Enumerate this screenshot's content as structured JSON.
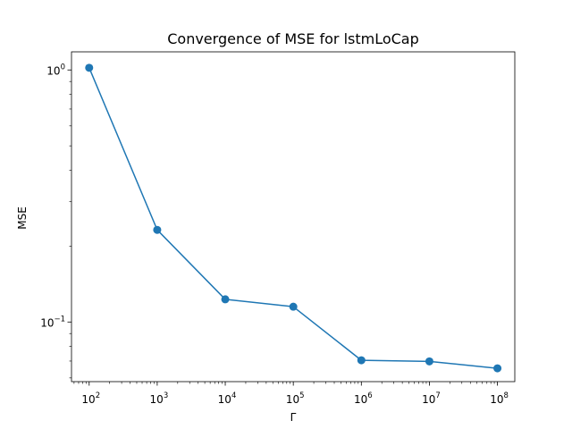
{
  "chart_data": {
    "type": "line",
    "title": "Convergence of MSE for lstmLoCap",
    "xlabel": "Γ",
    "ylabel": "MSE",
    "xscale": "log",
    "yscale": "log",
    "xlim": [
      55,
      180000000
    ],
    "ylim": [
      0.058,
      1.18
    ],
    "x": [
      100,
      1000,
      10000,
      100000,
      1000000,
      10000000,
      100000000
    ],
    "series": [
      {
        "values": [
          1.02,
          0.232,
          0.123,
          0.115,
          0.0705,
          0.0698,
          0.0655
        ],
        "color": "#1f77b4",
        "marker": "circle"
      }
    ],
    "x_ticks": [
      {
        "base": "10",
        "exp": "2",
        "value": 100
      },
      {
        "base": "10",
        "exp": "3",
        "value": 1000
      },
      {
        "base": "10",
        "exp": "4",
        "value": 10000
      },
      {
        "base": "10",
        "exp": "5",
        "value": 100000
      },
      {
        "base": "10",
        "exp": "6",
        "value": 1000000
      },
      {
        "base": "10",
        "exp": "7",
        "value": 10000000
      },
      {
        "base": "10",
        "exp": "8",
        "value": 100000000
      }
    ],
    "y_ticks": [
      {
        "base": "10",
        "exp": "−1",
        "value": 0.1
      },
      {
        "base": "10",
        "exp": "0",
        "value": 1
      }
    ],
    "grid": false,
    "legend": "none"
  }
}
